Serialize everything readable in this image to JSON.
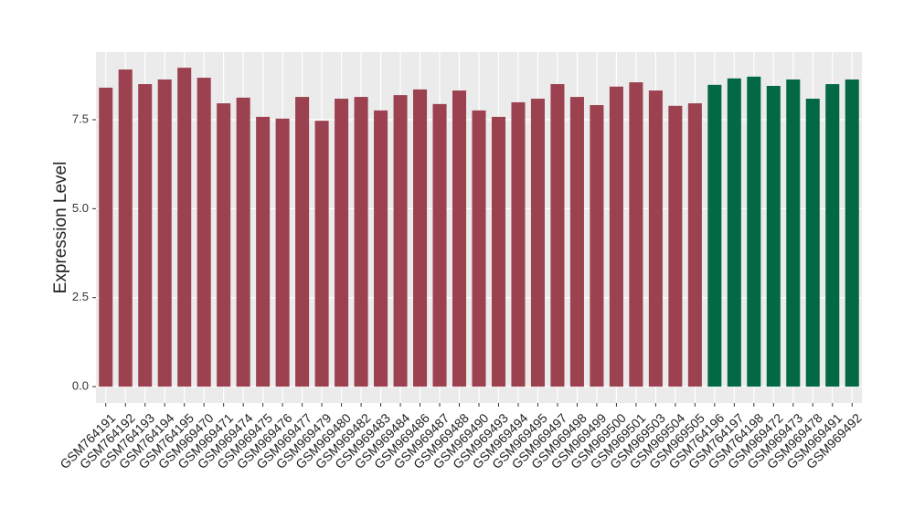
{
  "chart_data": {
    "type": "bar",
    "y_label": "Expression Level",
    "categories": [
      "GSM764191",
      "GSM764192",
      "GSM764193",
      "GSM764194",
      "GSM764195",
      "GSM969470",
      "GSM969471",
      "GSM969474",
      "GSM969475",
      "GSM969476",
      "GSM969477",
      "GSM969479",
      "GSM969480",
      "GSM969482",
      "GSM969483",
      "GSM969484",
      "GSM969486",
      "GSM969487",
      "GSM969488",
      "GSM969490",
      "GSM969493",
      "GSM969494",
      "GSM969495",
      "GSM969497",
      "GSM969498",
      "GSM969499",
      "GSM969500",
      "GSM969501",
      "GSM969503",
      "GSM969504",
      "GSM969505",
      "GSM764196",
      "GSM764197",
      "GSM764198",
      "GSM969472",
      "GSM969473",
      "GSM969478",
      "GSM969491",
      "GSM969492"
    ],
    "values": [
      8.4,
      8.91,
      8.5,
      8.63,
      8.96,
      8.68,
      7.96,
      8.12,
      7.58,
      7.53,
      8.14,
      7.47,
      8.09,
      8.14,
      7.76,
      8.19,
      8.35,
      7.94,
      8.32,
      7.76,
      7.58,
      7.99,
      8.09,
      8.5,
      8.14,
      7.91,
      8.43,
      8.55,
      8.32,
      7.89,
      7.96,
      8.48,
      8.66,
      8.71,
      8.45,
      8.63,
      8.09,
      8.5,
      8.63
    ],
    "colors": [
      "#9b4150",
      "#9b4150",
      "#9b4150",
      "#9b4150",
      "#9b4150",
      "#9b4150",
      "#9b4150",
      "#9b4150",
      "#9b4150",
      "#9b4150",
      "#9b4150",
      "#9b4150",
      "#9b4150",
      "#9b4150",
      "#9b4150",
      "#9b4150",
      "#9b4150",
      "#9b4150",
      "#9b4150",
      "#9b4150",
      "#9b4150",
      "#9b4150",
      "#9b4150",
      "#9b4150",
      "#9b4150",
      "#9b4150",
      "#9b4150",
      "#9b4150",
      "#9b4150",
      "#9b4150",
      "#9b4150",
      "#036944",
      "#036944",
      "#036944",
      "#036944",
      "#036944",
      "#036944",
      "#036944",
      "#036944"
    ],
    "ylim": [
      -0.46,
      9.4
    ],
    "yticks": [
      {
        "value": 0,
        "label": "0.0"
      },
      2.5,
      {
        "value": 5,
        "label": "5.0"
      },
      7.5
    ],
    "grid": true,
    "panel_color": "#ebebeb"
  }
}
